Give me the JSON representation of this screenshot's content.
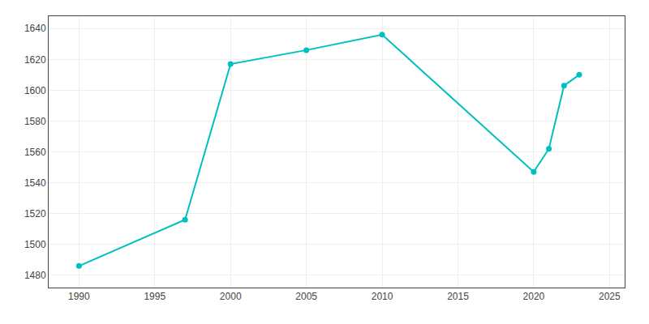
{
  "chart_data": {
    "type": "line",
    "x": [
      1990,
      1997,
      2000,
      2005,
      2010,
      2020,
      2021,
      2022,
      2023
    ],
    "values": [
      1486,
      1516,
      1617,
      1626,
      1636,
      1547,
      1562,
      1603,
      1610
    ],
    "color": "#00BFBF",
    "marker": "circle",
    "xlim": [
      1988,
      2026
    ],
    "ylim": [
      1472,
      1648
    ],
    "xticks": [
      1990,
      1995,
      2000,
      2005,
      2010,
      2015,
      2020,
      2025
    ],
    "yticks": [
      1480,
      1500,
      1520,
      1540,
      1560,
      1580,
      1600,
      1620,
      1640
    ],
    "grid": true
  }
}
